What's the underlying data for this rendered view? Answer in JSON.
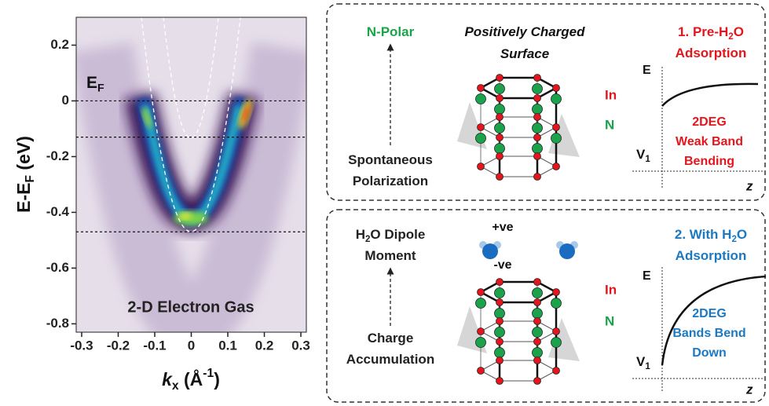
{
  "chart_data": {
    "type": "heatmap",
    "annotation": "2-D Electron Gas",
    "fermi_label": [
      {
        "text": "E"
      },
      {
        "text": "F",
        "style": "sub"
      }
    ],
    "ylabel": [
      {
        "text": "E-E"
      },
      {
        "text": "F",
        "style": "sub"
      },
      {
        "text": " (eV)"
      }
    ],
    "xlabel": [
      {
        "text": "k",
        "style": "italic"
      },
      {
        "text": "x",
        "style": "sub"
      },
      {
        "text": " (Å"
      },
      {
        "text": "-1",
        "style": "sup"
      },
      {
        "text": ")"
      }
    ],
    "xlim": [
      -0.315,
      0.315
    ],
    "xticks": [
      -0.3,
      -0.2,
      -0.1,
      0,
      0.1,
      0.2,
      0.3
    ],
    "ylim": [
      -0.83,
      0.3
    ],
    "yticks": [
      0.2,
      0,
      -0.2,
      -0.4,
      -0.6,
      -0.8
    ],
    "reference_lines": [
      0,
      -0.13,
      -0.47
    ]
  },
  "panels": [
    {
      "color": "#e3161d",
      "arrow_top": [
        [
          {
            "text": "N-Polar"
          }
        ]
      ],
      "arrow_bottom": [
        [
          {
            "text": "Spontaneous"
          }
        ],
        [
          {
            "text": "Polarization"
          }
        ]
      ],
      "center_title": [
        [
          {
            "text": "Positively Charged"
          }
        ],
        [
          {
            "text": "Surface"
          }
        ]
      ],
      "atoms": [
        "In",
        "N"
      ],
      "band_title": [
        [
          {
            "text": "1. Pre-H"
          },
          {
            "text": "2",
            "style": "sub"
          },
          {
            "text": "O"
          }
        ],
        [
          {
            "text": "Adsorption"
          }
        ]
      ],
      "band_text": [
        [
          {
            "text": "2DEG"
          }
        ],
        [
          {
            "text": "Weak Band"
          }
        ],
        [
          {
            "text": "Bending"
          }
        ]
      ],
      "axis_e": "E",
      "axis_v": [
        {
          "text": "V"
        },
        {
          "text": "1",
          "style": "sub"
        }
      ],
      "axis_z": "z"
    },
    {
      "color": "#1b78c2",
      "arrow_top": [
        [
          {
            "text": "H"
          },
          {
            "text": "2",
            "style": "sub"
          },
          {
            "text": "O Dipole"
          }
        ],
        [
          {
            "text": "Moment"
          }
        ]
      ],
      "arrow_bottom": [
        [
          {
            "text": "Charge"
          }
        ],
        [
          {
            "text": "Accumulation"
          }
        ]
      ],
      "molecule_labels": [
        "+ve",
        "-ve"
      ],
      "atoms": [
        "In",
        "N"
      ],
      "band_title": [
        [
          {
            "text": "2. With H"
          },
          {
            "text": "2",
            "style": "sub"
          },
          {
            "text": "O"
          }
        ],
        [
          {
            "text": "Adsorption"
          }
        ]
      ],
      "band_text": [
        [
          {
            "text": "2DEG"
          }
        ],
        [
          {
            "text": "Bands Bend"
          }
        ],
        [
          {
            "text": "Down"
          }
        ]
      ],
      "axis_e": "E",
      "axis_v": [
        {
          "text": "V"
        },
        {
          "text": "1",
          "style": "sub"
        }
      ],
      "axis_z": "z"
    }
  ]
}
